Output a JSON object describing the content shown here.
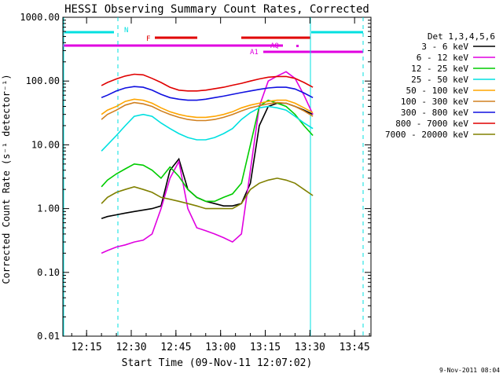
{
  "chart_data": {
    "type": "line",
    "title": "HESSI Observing Summary Count Rates, Corrected",
    "xlabel": "Start Time (09-Nov-11 12:07:02)",
    "ylabel": "Corrected Count Rate (s⁻¹ detector⁻¹)",
    "x_ticks": [
      "12:15",
      "12:30",
      "12:45",
      "13:00",
      "13:15",
      "13:30",
      "13:45"
    ],
    "y_ticks": [
      "1000.00",
      "100.00",
      "10.00",
      "1.00",
      "0.10",
      "0.01"
    ],
    "xlim": [
      "12:07:02",
      "13:50:30"
    ],
    "ylim": [
      0.01,
      1000
    ],
    "y_scale": "log",
    "legend_title": "Det 1,3,4,5,6",
    "legend_position": "right",
    "footer": "9-Nov-2011 08:04",
    "x": [
      "12:20",
      "12:22",
      "12:25",
      "12:28",
      "12:31",
      "12:34",
      "12:37",
      "12:40",
      "12:43",
      "12:46",
      "12:49",
      "12:52",
      "12:55",
      "12:58",
      "13:01",
      "13:04",
      "13:07",
      "13:10",
      "13:13",
      "13:16",
      "13:19",
      "13:22",
      "13:25",
      "13:28",
      "13:31"
    ],
    "series": [
      {
        "name": "3 - 6 keV",
        "color": "#000000",
        "values": [
          0.7,
          0.75,
          0.8,
          0.85,
          0.9,
          0.95,
          1.0,
          1.1,
          4.0,
          6.0,
          2.0,
          1.5,
          1.3,
          1.2,
          1.1,
          1.1,
          1.2,
          2.5,
          20,
          40,
          45,
          45,
          40,
          35,
          30
        ]
      },
      {
        "name": "6 - 12 keV",
        "color": "#e000e0",
        "values": [
          0.2,
          0.22,
          0.25,
          0.27,
          0.3,
          0.32,
          0.4,
          1.0,
          3.0,
          5.5,
          1.0,
          0.5,
          0.45,
          0.4,
          0.35,
          0.3,
          0.4,
          4,
          40,
          100,
          120,
          140,
          110,
          60,
          30
        ]
      },
      {
        "name": "12 - 25 keV",
        "color": "#00cc00",
        "values": [
          2.2,
          2.8,
          3.5,
          4.2,
          5.0,
          4.8,
          4.0,
          3.0,
          4.5,
          3.2,
          2.0,
          1.5,
          1.3,
          1.3,
          1.5,
          1.7,
          2.5,
          10,
          40,
          50,
          45,
          40,
          30,
          20,
          14
        ]
      },
      {
        "name": "25 - 50 keV",
        "color": "#00e0e0",
        "values": [
          8,
          10,
          14,
          20,
          28,
          30,
          28,
          22,
          18,
          15,
          13,
          12,
          12,
          13,
          15,
          18,
          25,
          32,
          38,
          40,
          38,
          35,
          28,
          22,
          18
        ]
      },
      {
        "name": "50 - 100 keV",
        "color": "#ffa500",
        "values": [
          30,
          35,
          40,
          48,
          52,
          50,
          45,
          38,
          33,
          30,
          28,
          27,
          27,
          28,
          30,
          33,
          38,
          42,
          45,
          48,
          50,
          50,
          45,
          38,
          32
        ]
      },
      {
        "name": "100 - 300 keV",
        "color": "#d08020",
        "values": [
          25,
          30,
          35,
          42,
          46,
          44,
          40,
          34,
          30,
          27,
          25,
          24,
          24,
          25,
          27,
          30,
          34,
          38,
          41,
          44,
          46,
          45,
          40,
          34,
          28
        ]
      },
      {
        "name": "300 - 800 keV",
        "color": "#1010e0",
        "values": [
          55,
          60,
          70,
          78,
          82,
          80,
          72,
          62,
          55,
          52,
          50,
          50,
          52,
          55,
          58,
          62,
          66,
          70,
          74,
          78,
          80,
          80,
          75,
          65,
          55
        ]
      },
      {
        "name": "800 - 7000 keV",
        "color": "#e00000",
        "values": [
          85,
          95,
          108,
          120,
          128,
          125,
          110,
          95,
          80,
          72,
          70,
          70,
          72,
          76,
          80,
          86,
          92,
          100,
          108,
          115,
          118,
          118,
          110,
          95,
          80
        ]
      },
      {
        "name": "7000 - 20000 keV",
        "color": "#808000",
        "values": [
          1.2,
          1.5,
          1.8,
          2.0,
          2.2,
          2.0,
          1.8,
          1.5,
          1.4,
          1.3,
          1.2,
          1.1,
          1.0,
          1.0,
          1.0,
          1.0,
          1.2,
          2.0,
          2.5,
          2.8,
          3.0,
          2.8,
          2.5,
          2.0,
          1.6
        ]
      }
    ],
    "flag_markers": [
      {
        "label": "N",
        "color": "#00e0e0"
      },
      {
        "label": "F",
        "color": "#e00000"
      },
      {
        "label": "AQ",
        "color": "#e000e0"
      },
      {
        "label": "A1",
        "color": "#e000e0"
      }
    ]
  }
}
